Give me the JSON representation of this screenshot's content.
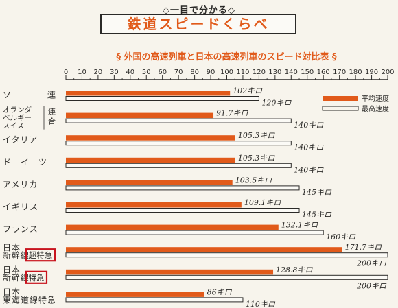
{
  "header": {
    "subtitle": "◇一目で分かる◇",
    "title": "鉄道スピードくらべ"
  },
  "chart_data": {
    "type": "bar",
    "title": "§ 外国の高速列車と日本の高速列車のスピード対比表 §",
    "unit": "キロ",
    "xlim": [
      0,
      200
    ],
    "x_ticks": [
      "0",
      "10",
      "20",
      "30",
      "40",
      "50",
      "60",
      "70",
      "80",
      "90",
      "100",
      "110",
      "120",
      "130",
      "140",
      "150",
      "160",
      "170",
      "180",
      "190",
      "200"
    ],
    "categories": [
      {
        "lines": [
          "ソ　　　　連"
        ]
      },
      {
        "lines": [
          "オランダ",
          "ベルギー",
          "スイス"
        ],
        "suffix": "連合"
      },
      {
        "lines": [
          "イタリア"
        ]
      },
      {
        "lines": [
          "ド　イ　ツ"
        ]
      },
      {
        "lines": [
          "アメリカ"
        ]
      },
      {
        "lines": [
          "イギリス"
        ]
      },
      {
        "lines": [
          "フランス"
        ]
      },
      {
        "lines": [
          "日本",
          "新幹線"
        ],
        "badge": "超特急"
      },
      {
        "lines": [
          "日本",
          "新幹線"
        ],
        "badge": "特急"
      },
      {
        "lines": [
          "日本",
          "東海道線特急"
        ]
      }
    ],
    "series": [
      {
        "name": "平均速度",
        "values": [
          102,
          91.7,
          105.3,
          105.3,
          103.5,
          109.1,
          132.1,
          171.7,
          128.8,
          86
        ],
        "labels": [
          "102キロ",
          "91.7キロ",
          "105.3キロ",
          "105.3キロ",
          "103.5キロ",
          "109.1キロ",
          "132.1キロ",
          "171.7キロ",
          "128.8キロ",
          "86キロ"
        ]
      },
      {
        "name": "最高速度",
        "values": [
          120,
          140,
          140,
          140,
          145,
          145,
          160,
          200,
          200,
          110
        ],
        "labels": [
          "120キロ",
          "140キロ",
          "140キロ",
          "140キロ",
          "145キロ",
          "145キロ",
          "160キロ",
          "200キロ",
          "200キロ",
          "110キロ"
        ]
      }
    ],
    "legend_position": "top-right"
  },
  "colors": {
    "average_bar": "#e15a1a",
    "max_bar_outline": "#2b2a28",
    "title_text": "#e15a1a",
    "badge_border": "#c8141e"
  }
}
